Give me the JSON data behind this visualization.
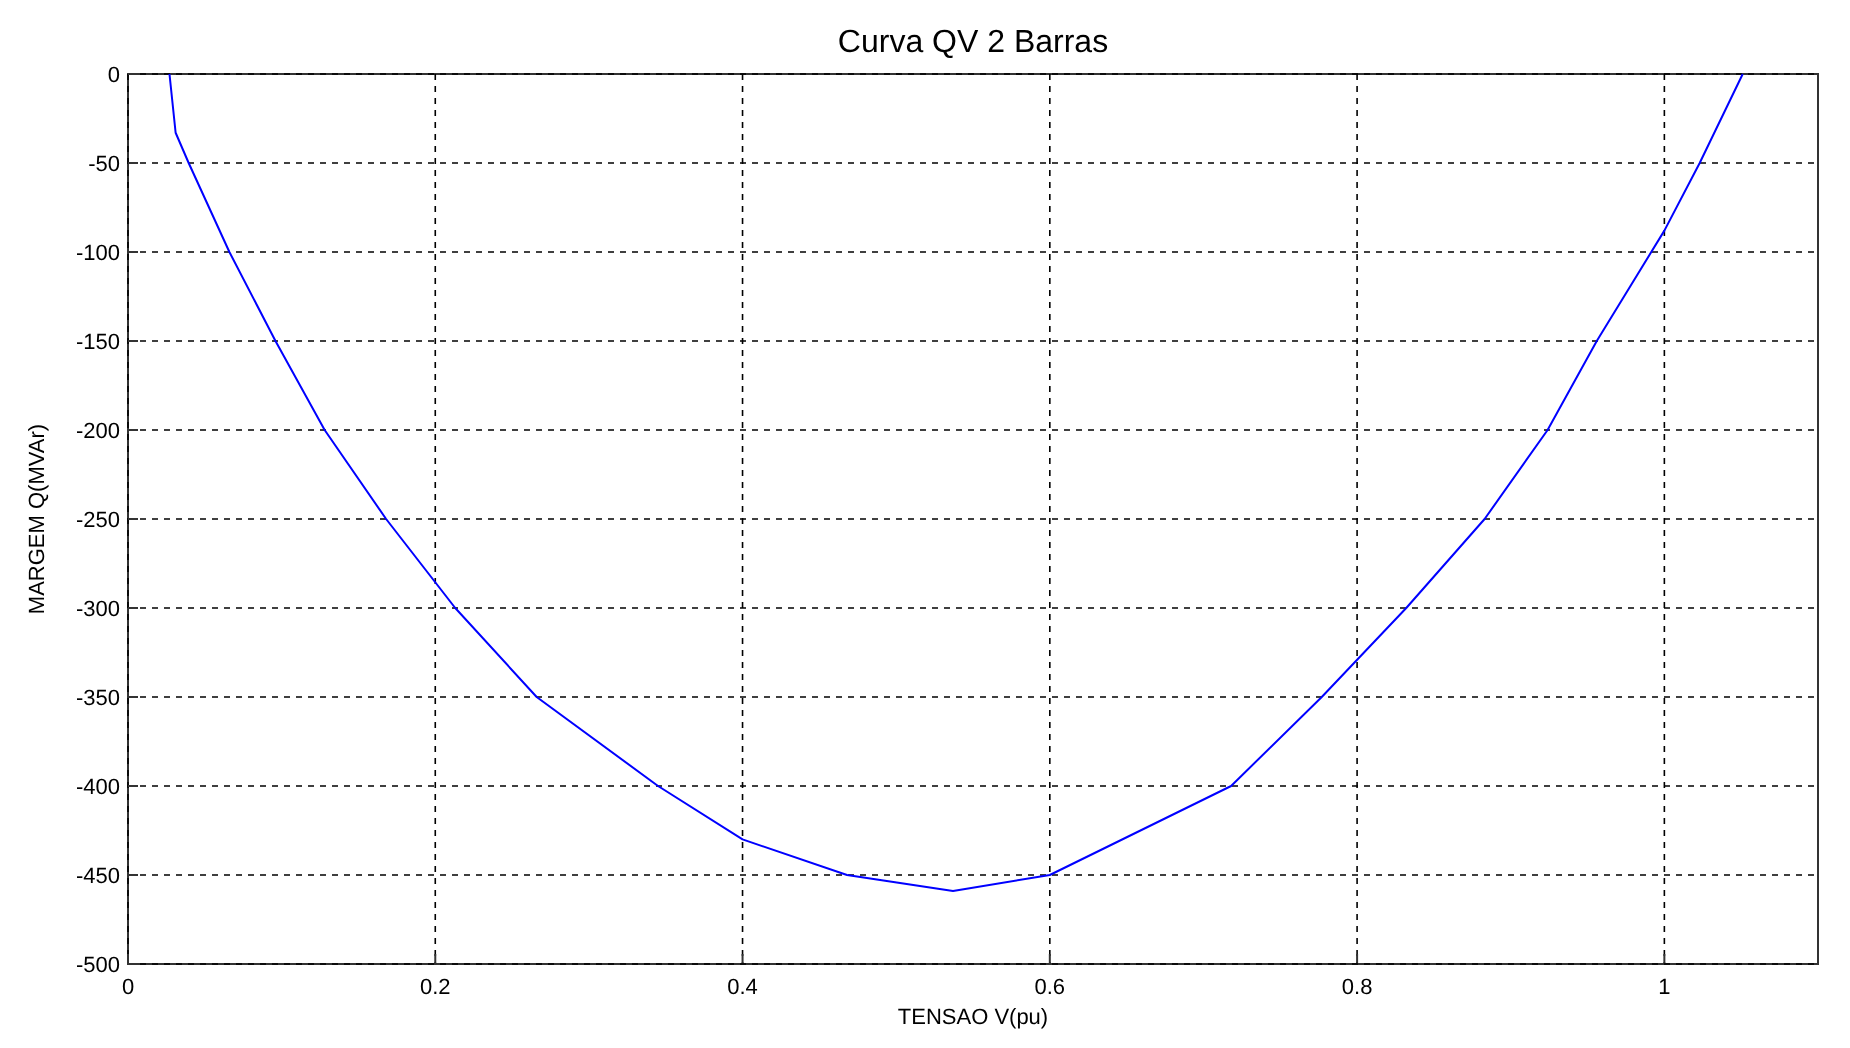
{
  "chart_data": {
    "type": "line",
    "title": "Curva QV 2 Barras",
    "xlabel": "TENSAO V(pu)",
    "ylabel": "MARGEM Q(MVAr)",
    "xlim": [
      0,
      1.1
    ],
    "ylim": [
      -500,
      0
    ],
    "xticks": [
      0,
      0.2,
      0.4,
      0.6,
      0.8,
      1
    ],
    "yticks": [
      -500,
      -450,
      -400,
      -350,
      -300,
      -250,
      -200,
      -150,
      -100,
      -50,
      0
    ],
    "grid": true,
    "series": [
      {
        "color": "#0000ff",
        "x": [
          0.027,
          0.031,
          0.0395,
          0.066,
          0.096,
          0.128,
          0.168,
          0.213,
          0.266,
          0.345,
          0.4,
          0.468,
          0.537,
          0.6,
          0.718,
          0.777,
          0.832,
          0.883,
          0.924,
          0.956,
          1.0,
          1.023,
          1.051
        ],
        "values": [
          0,
          -33,
          -50,
          -100,
          -150,
          -200,
          -250,
          -300,
          -350,
          -400,
          -430,
          -450,
          -459,
          -450,
          -400,
          -350,
          -300,
          -250,
          -200,
          -150,
          -88,
          -50,
          0
        ]
      }
    ]
  }
}
